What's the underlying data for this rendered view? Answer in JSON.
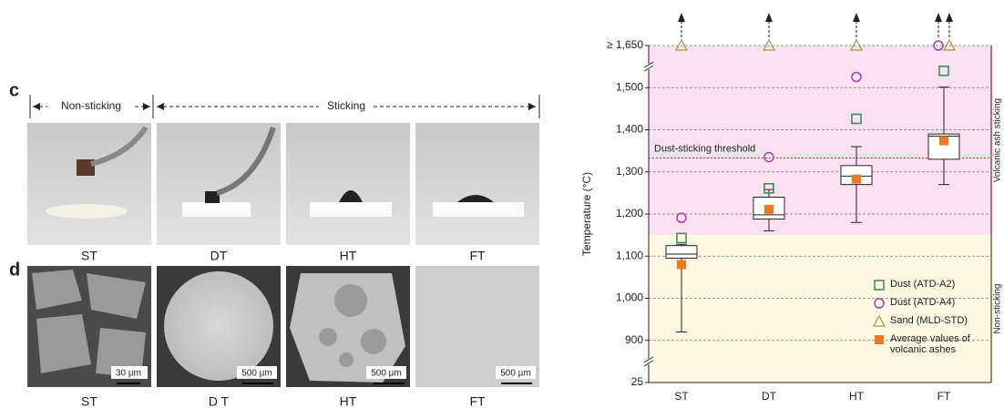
{
  "figure": {
    "panel_c": "c",
    "panel_d": "d",
    "non_sticking": "Non-sticking",
    "sticking": "Sticking",
    "photo_labels": [
      "ST",
      "DT",
      "HT",
      "FT"
    ],
    "sem_labels": [
      "ST",
      "D T",
      "HT",
      "FT"
    ],
    "scale_bars": [
      "30 µm",
      "500 µm",
      "500 µm",
      "500 µm"
    ]
  },
  "chart_data": {
    "type": "box",
    "ylabel": "Temperature (°C)",
    "categories": [
      "ST",
      "DT",
      "HT",
      "FT"
    ],
    "ylim": [
      25,
      1650
    ],
    "yticks": [
      25,
      900,
      {
        "value": 1000,
        "label": "1,000"
      },
      {
        "value": 1100,
        "label": "1,100"
      },
      {
        "value": 1200,
        "label": "1,200"
      },
      {
        "value": 1300,
        "label": "1,300"
      },
      {
        "value": 1400,
        "label": "1,400"
      },
      {
        "value": 1500,
        "label": "1,500"
      },
      {
        "value": 1650,
        "label": "≥ 1,650"
      }
    ],
    "grid": true,
    "boxes": {
      "low": [
        920,
        1160,
        1180,
        1270
      ],
      "q1": [
        1095,
        1188,
        1270,
        1330
      ],
      "median": [
        1105,
        1198,
        1290,
        1385
      ],
      "q3": [
        1125,
        1240,
        1315,
        1390
      ],
      "high": [
        1128,
        1258,
        1360,
        1502
      ]
    },
    "series": [
      {
        "name": "Dust (ATD-A2)",
        "marker": "square",
        "color": "#2e8b57",
        "values": [
          1143,
          1261,
          1426,
          1560
        ]
      },
      {
        "name": "Dust (ATD-A4)",
        "marker": "circle",
        "color": "#a040b0",
        "values": [
          1191,
          1335,
          1538,
          1650
        ]
      },
      {
        "name": "Sand (MLD-STD)",
        "marker": "triangle",
        "color": "#9a9a40",
        "values": [
          1650,
          1650,
          1650,
          1650
        ]
      },
      {
        "name": "Average values of volcanic ashes",
        "marker": "filled-square",
        "color": "#f07820",
        "values": [
          1080,
          1211,
          1283,
          1374
        ]
      }
    ],
    "threshold": {
      "value": 1333,
      "label": "Dust-sticking threshold",
      "color": "#e03030"
    },
    "regions": [
      {
        "label": "Volcanic ash sticking",
        "from": 1150,
        "to": 1650,
        "color": "#fbe1ef"
      },
      {
        "label": "Non-sticking",
        "from": 25,
        "to": 1150,
        "color": "#fdf8e2"
      }
    ]
  }
}
